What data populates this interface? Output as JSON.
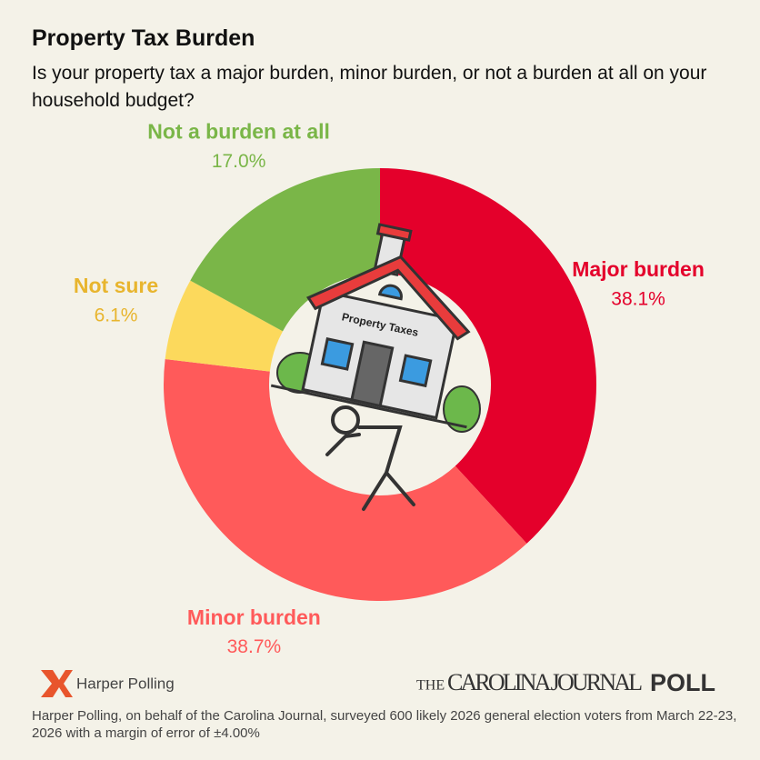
{
  "chart_data": {
    "type": "donut",
    "title": "Property Tax Burden",
    "subtitle": "Is your property tax a major burden, minor burden, or not a burden at all on your household budget?",
    "series": [
      {
        "name": "Major burden",
        "color": "#e4002b",
        "values": [
          38.1
        ],
        "value_labels": [
          "38.1%"
        ]
      },
      {
        "name": "Minor burden",
        "color": "#ff5a5a",
        "values": [
          38.7
        ],
        "value_labels": [
          "38.7%"
        ]
      },
      {
        "name": "Not sure",
        "color": "#fcd95c",
        "label_color": "#e8b52e",
        "values": [
          6.1
        ],
        "value_labels": [
          "6.1%"
        ]
      },
      {
        "name": "Not a burden at all",
        "color": "#7ab648",
        "values": [
          17.0
        ],
        "value_labels": [
          "17.0%"
        ]
      }
    ],
    "illustration_label": "Property Taxes",
    "source_logo": "Harper Polling",
    "publisher_logo": {
      "prefix": "THE",
      "name": "CAROLINA JOURNAL",
      "suffix": "POLL"
    },
    "footnote": "Harper Polling, on behalf of the Carolina Journal, surveyed 600 likely 2026 general election voters from March 22-23, 2026 with a margin of error of ±4.00%"
  }
}
